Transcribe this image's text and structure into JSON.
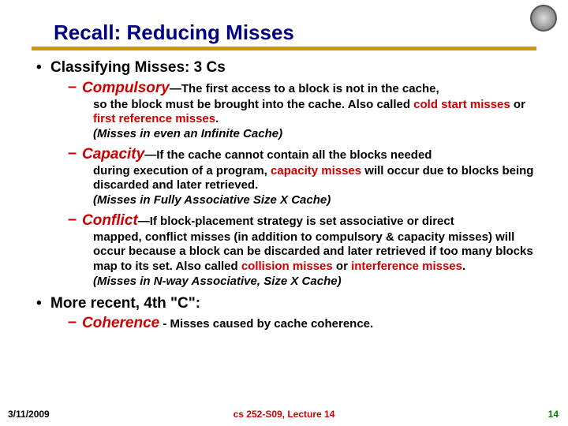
{
  "title": "Recall: Reducing Misses",
  "underline_color": "#cc9900",
  "title_color": "#000080",
  "accent_red": "#cc0000",
  "accent_green": "#008000",
  "top_bullets": {
    "b1": "Classifying Misses: 3 Cs",
    "b2": "More recent, 4th \"C\":"
  },
  "sub": {
    "compulsory": {
      "term": "Compulsory",
      "lead": "—The first access to a block is not in the cache,",
      "body1": "so the block must be brought into the cache. Also called ",
      "red1": "cold start misses",
      "body2": " or ",
      "red2": "first reference misses",
      "tail": ".",
      "note": "(Misses in even an Infinite Cache)"
    },
    "capacity": {
      "term": "Capacity",
      "lead": "—If the cache cannot contain all the blocks needed",
      "body1": "during execution of a program, ",
      "red1": "capacity misses",
      "body2": " will occur due to blocks being discarded and later retrieved.",
      "note": "(Misses in Fully Associative Size X Cache)"
    },
    "conflict": {
      "term": "Conflict",
      "lead": "—If block-placement strategy is set associative or direct",
      "body1": "mapped, conflict misses (in addition to compulsory & capacity misses) will occur because a block can be discarded and later retrieved if too many blocks map to its set. Also called ",
      "red1": "collision misses",
      "body2": " or ",
      "red2": "interference misses",
      "tail": ".",
      "note": "(Misses in N-way Associative, Size X Cache)"
    },
    "coherence": {
      "term": "Coherence",
      "lead": " - Misses caused by cache coherence."
    }
  },
  "footer": {
    "date": "3/11/2009",
    "mid": "cs 252-S09, Lecture 14",
    "page": "14"
  }
}
